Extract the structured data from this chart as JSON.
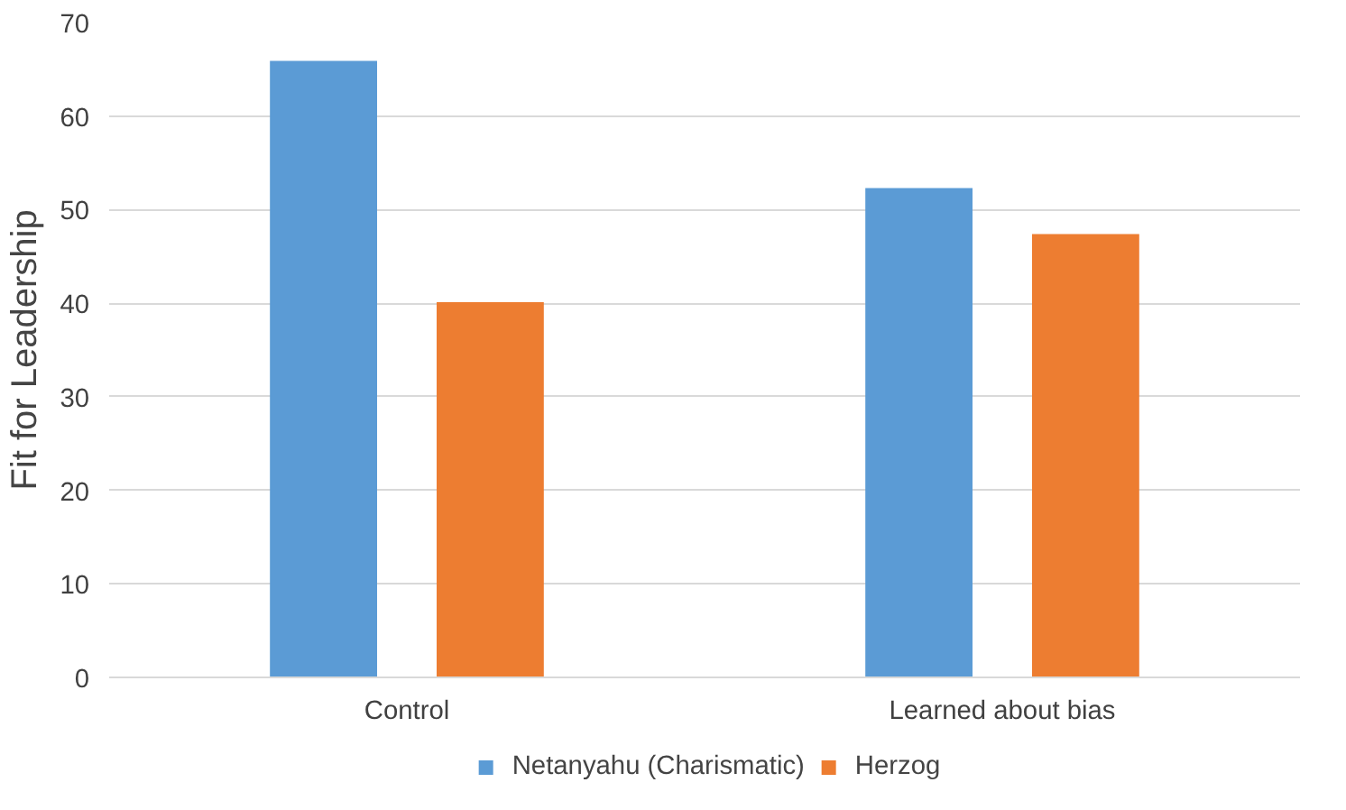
{
  "chart_data": {
    "type": "bar",
    "ylabel": "Fit for Leadership",
    "categories": [
      "Control",
      "Learned about bias"
    ],
    "series": [
      {
        "name": "Netanyahu (Charismatic)",
        "color": "#5b9bd5",
        "values": [
          65.9,
          52.3
        ]
      },
      {
        "name": "Herzog",
        "color": "#ed7d31",
        "values": [
          40.1,
          47.4
        ]
      }
    ],
    "ylim": [
      0,
      70
    ],
    "yticks": [
      0,
      10,
      20,
      30,
      40,
      50,
      60,
      70
    ],
    "grid": "y",
    "legend": "bottom"
  }
}
